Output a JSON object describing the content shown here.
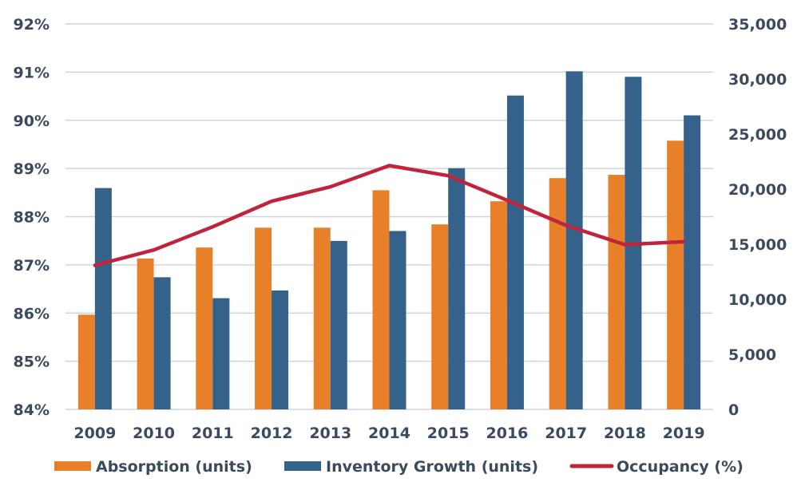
{
  "chart_data": {
    "type": "bar",
    "categories": [
      "2009",
      "2010",
      "2011",
      "2012",
      "2013",
      "2014",
      "2015",
      "2016",
      "2017",
      "2018",
      "2019"
    ],
    "series": [
      {
        "name": "Absorption (units)",
        "type": "bar",
        "axis": "right",
        "color": "#e8802a",
        "values": [
          8600,
          13700,
          14700,
          16500,
          16500,
          19900,
          16800,
          18900,
          21000,
          21300,
          24400
        ]
      },
      {
        "name": "Inventory Growth (units)",
        "type": "bar",
        "axis": "right",
        "color": "#35628b",
        "values": [
          20100,
          12000,
          10100,
          10800,
          15300,
          16200,
          21900,
          28500,
          30700,
          30200,
          26700
        ]
      },
      {
        "name": "Occupancy (%)",
        "type": "line",
        "axis": "left",
        "color": "#c0243a",
        "values": [
          86.99,
          87.31,
          87.79,
          88.32,
          88.62,
          89.06,
          88.85,
          88.34,
          87.82,
          87.42,
          87.48
        ]
      }
    ],
    "y_left": {
      "min": 84,
      "max": 92,
      "ticks": [
        "84%",
        "85%",
        "86%",
        "87%",
        "88%",
        "89%",
        "90%",
        "91%",
        "92%"
      ]
    },
    "y_right": {
      "min": 0,
      "max": 35000,
      "ticks": [
        "0",
        "5,000",
        "10,000",
        "15,000",
        "20,000",
        "25,000",
        "30,000",
        "35,000"
      ]
    },
    "grid": true,
    "legend_position": "bottom"
  }
}
